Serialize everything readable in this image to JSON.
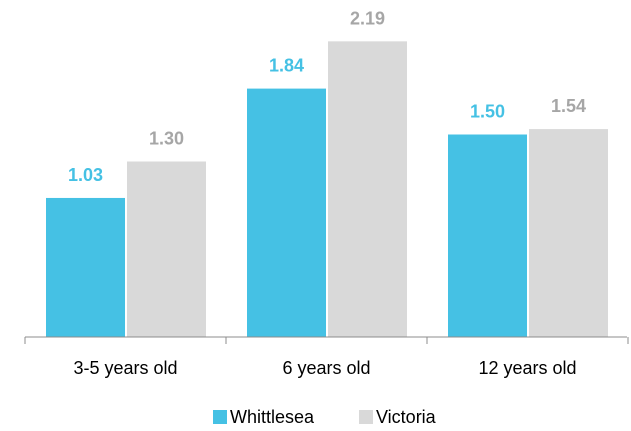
{
  "chart_data": {
    "type": "bar",
    "categories": [
      "3-5 years old",
      "6 years old",
      "12 years old"
    ],
    "series": [
      {
        "name": "Whittlesea",
        "values": [
          1.03,
          1.84,
          1.5
        ],
        "labels": [
          "1.03",
          "1.84",
          "1.50"
        ],
        "color": "#45c1e4",
        "label_color": "#45c1e4"
      },
      {
        "name": "Victoria",
        "values": [
          1.3,
          2.19,
          1.54
        ],
        "labels": [
          "1.30",
          "2.19",
          "1.54"
        ],
        "color": "#d9d9d9",
        "label_color": "#a6a6a6"
      }
    ],
    "title": "",
    "xlabel": "",
    "ylabel": "",
    "ylim": [
      0,
      2.5
    ],
    "grid": false,
    "legend_position": "bottom-center"
  }
}
